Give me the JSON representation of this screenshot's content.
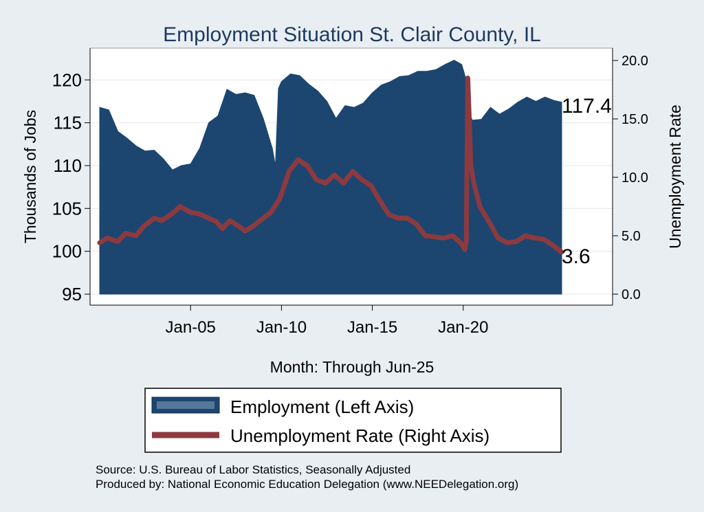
{
  "colors": {
    "background": "#e9eef3",
    "plot_background": "#ffffff",
    "employment": "#1c4670",
    "unemployment": "#8c3a3f",
    "title": "#1d3a5e",
    "gridline": "#e6e6e6"
  },
  "chart_data": {
    "type": "area",
    "title": "Employment Situation St. Clair  County, IL",
    "xlabel": "Month: Through Jun-25",
    "ylabel_left": "Thousands of Jobs",
    "ylabel_right": "Unemployment Rate",
    "x_range": [
      "2000-01",
      "2025-06"
    ],
    "ylim_left": [
      95,
      122.5
    ],
    "ylim_right": [
      0,
      20.5
    ],
    "x_ticks": [
      {
        "date": "2005-01",
        "label": "Jan-05"
      },
      {
        "date": "2010-01",
        "label": "Jan-10"
      },
      {
        "date": "2015-01",
        "label": "Jan-15"
      },
      {
        "date": "2020-01",
        "label": "Jan-20"
      }
    ],
    "y_ticks_left": [
      "95",
      "100",
      "105",
      "110",
      "115",
      "120"
    ],
    "y_ticks_right": [
      "0.0",
      "5.0",
      "10.0",
      "15.0",
      "20.0"
    ],
    "grid": true,
    "end_labels": {
      "employment": "117.4",
      "unemployment": "3.6"
    },
    "legend": {
      "placement": "bottom",
      "entries": [
        "Employment (Left Axis)",
        "Unemployment Rate (Right Axis)"
      ]
    },
    "series": [
      {
        "name": "Employment (Left Axis)",
        "axis": "left",
        "points": [
          [
            "2000-01",
            116.8
          ],
          [
            "2000-07",
            116.5
          ],
          [
            "2001-01",
            114.0
          ],
          [
            "2001-07",
            113.2
          ],
          [
            "2002-01",
            112.3
          ],
          [
            "2002-07",
            111.7
          ],
          [
            "2003-01",
            111.8
          ],
          [
            "2003-07",
            110.8
          ],
          [
            "2004-01",
            109.5
          ],
          [
            "2004-07",
            110.0
          ],
          [
            "2005-01",
            110.2
          ],
          [
            "2005-07",
            112.0
          ],
          [
            "2006-01",
            115.0
          ],
          [
            "2006-07",
            115.8
          ],
          [
            "2007-01",
            118.9
          ],
          [
            "2007-07",
            118.3
          ],
          [
            "2008-01",
            118.5
          ],
          [
            "2008-07",
            118.2
          ],
          [
            "2009-01",
            115.5
          ],
          [
            "2009-07",
            112.0
          ],
          [
            "2009-09",
            110.0
          ],
          [
            "2009-11",
            119.0
          ],
          [
            "2010-01",
            119.8
          ],
          [
            "2010-07",
            120.7
          ],
          [
            "2011-01",
            120.5
          ],
          [
            "2011-07",
            119.5
          ],
          [
            "2012-01",
            118.7
          ],
          [
            "2012-07",
            117.5
          ],
          [
            "2013-01",
            115.5
          ],
          [
            "2013-07",
            117.0
          ],
          [
            "2014-01",
            116.8
          ],
          [
            "2014-07",
            117.3
          ],
          [
            "2015-01",
            118.5
          ],
          [
            "2015-07",
            119.4
          ],
          [
            "2016-01",
            119.8
          ],
          [
            "2016-07",
            120.4
          ],
          [
            "2017-01",
            120.5
          ],
          [
            "2017-07",
            121.0
          ],
          [
            "2018-01",
            121.0
          ],
          [
            "2018-07",
            121.2
          ],
          [
            "2019-01",
            121.8
          ],
          [
            "2019-07",
            122.3
          ],
          [
            "2019-12",
            121.8
          ],
          [
            "2020-03",
            120.0
          ],
          [
            "2020-04",
            116.5
          ],
          [
            "2020-07",
            115.3
          ],
          [
            "2021-01",
            115.4
          ],
          [
            "2021-07",
            116.8
          ],
          [
            "2022-01",
            116.0
          ],
          [
            "2022-07",
            116.6
          ],
          [
            "2023-01",
            117.4
          ],
          [
            "2023-07",
            118.0
          ],
          [
            "2024-01",
            117.5
          ],
          [
            "2024-07",
            118.0
          ],
          [
            "2025-01",
            117.6
          ],
          [
            "2025-06",
            117.4
          ]
        ]
      },
      {
        "name": "Unemployment Rate (Right Axis)",
        "axis": "right",
        "points": [
          [
            "2000-01",
            4.4
          ],
          [
            "2000-06",
            4.8
          ],
          [
            "2001-01",
            4.5
          ],
          [
            "2001-06",
            5.2
          ],
          [
            "2002-01",
            5.0
          ],
          [
            "2002-06",
            5.8
          ],
          [
            "2003-01",
            6.5
          ],
          [
            "2003-06",
            6.3
          ],
          [
            "2004-01",
            6.9
          ],
          [
            "2004-06",
            7.5
          ],
          [
            "2005-01",
            7.0
          ],
          [
            "2005-06",
            6.9
          ],
          [
            "2006-01",
            6.5
          ],
          [
            "2006-06",
            6.2
          ],
          [
            "2006-10",
            5.6
          ],
          [
            "2007-03",
            6.3
          ],
          [
            "2007-09",
            5.8
          ],
          [
            "2008-01",
            5.4
          ],
          [
            "2008-06",
            5.8
          ],
          [
            "2008-12",
            6.4
          ],
          [
            "2009-06",
            7.0
          ],
          [
            "2009-12",
            8.2
          ],
          [
            "2010-06",
            10.5
          ],
          [
            "2010-12",
            11.5
          ],
          [
            "2011-06",
            11.0
          ],
          [
            "2011-12",
            9.8
          ],
          [
            "2012-06",
            9.5
          ],
          [
            "2012-12",
            10.2
          ],
          [
            "2013-06",
            9.5
          ],
          [
            "2013-12",
            10.5
          ],
          [
            "2014-06",
            9.8
          ],
          [
            "2014-12",
            9.3
          ],
          [
            "2015-06",
            8.0
          ],
          [
            "2015-12",
            6.8
          ],
          [
            "2016-06",
            6.5
          ],
          [
            "2016-12",
            6.5
          ],
          [
            "2017-06",
            6.0
          ],
          [
            "2017-12",
            5.0
          ],
          [
            "2018-06",
            4.9
          ],
          [
            "2018-12",
            4.8
          ],
          [
            "2019-06",
            5.0
          ],
          [
            "2019-12",
            4.3
          ],
          [
            "2020-02",
            3.8
          ],
          [
            "2020-03",
            4.5
          ],
          [
            "2020-04",
            18.5
          ],
          [
            "2020-05",
            15.0
          ],
          [
            "2020-06",
            11.0
          ],
          [
            "2020-08",
            9.5
          ],
          [
            "2020-12",
            7.5
          ],
          [
            "2021-06",
            6.2
          ],
          [
            "2021-12",
            4.8
          ],
          [
            "2022-06",
            4.4
          ],
          [
            "2022-12",
            4.5
          ],
          [
            "2023-06",
            5.0
          ],
          [
            "2023-12",
            4.8
          ],
          [
            "2024-06",
            4.7
          ],
          [
            "2024-12",
            4.2
          ],
          [
            "2025-06",
            3.6
          ]
        ]
      }
    ]
  },
  "footer": {
    "source": "Source: U.S. Bureau of Labor Statistics, Seasonally Adjusted",
    "producer": "Produced by: National Economic Education Delegation (www.NEEDelegation.org)"
  }
}
